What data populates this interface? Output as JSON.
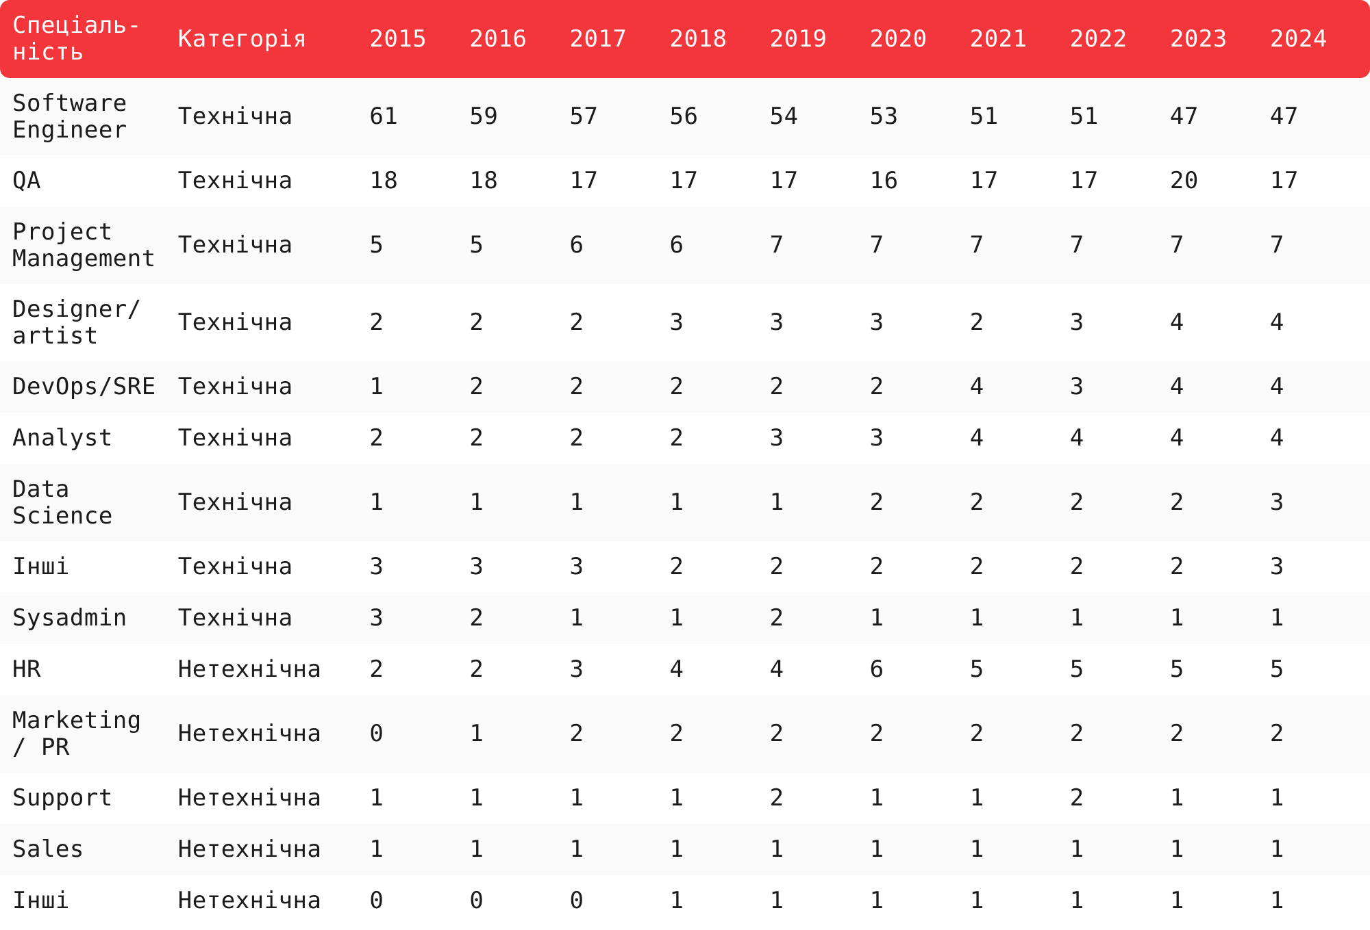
{
  "table": {
    "header": {
      "specialty": "Спеціаль-\nність",
      "category": "Категорія",
      "years": [
        "2015",
        "2016",
        "2017",
        "2018",
        "2019",
        "2020",
        "2021",
        "2022",
        "2023",
        "2024"
      ]
    },
    "rows": [
      {
        "specialty": "Software\nEngineer",
        "category": "Технічна",
        "values": [
          "61",
          "59",
          "57",
          "56",
          "54",
          "53",
          "51",
          "51",
          "47",
          "47"
        ]
      },
      {
        "specialty": "QA",
        "category": "Технічна",
        "values": [
          "18",
          "18",
          "17",
          "17",
          "17",
          "16",
          "17",
          "17",
          "20",
          "17"
        ]
      },
      {
        "specialty": "Project\nManagement",
        "category": "Технічна",
        "values": [
          "5",
          "5",
          "6",
          "6",
          "7",
          "7",
          "7",
          "7",
          "7",
          "7"
        ]
      },
      {
        "specialty": "Designer/\nartist",
        "category": "Технічна",
        "values": [
          "2",
          "2",
          "2",
          "3",
          "3",
          "3",
          "2",
          "3",
          "4",
          "4"
        ]
      },
      {
        "specialty": "DevOps/SRE",
        "category": "Технічна",
        "values": [
          "1",
          "2",
          "2",
          "2",
          "2",
          "2",
          "4",
          "3",
          "4",
          "4"
        ]
      },
      {
        "specialty": "Analyst",
        "category": "Технічна",
        "values": [
          "2",
          "2",
          "2",
          "2",
          "3",
          "3",
          "4",
          "4",
          "4",
          "4"
        ]
      },
      {
        "specialty": "Data\nScience",
        "category": "Технічна",
        "values": [
          "1",
          "1",
          "1",
          "1",
          "1",
          "2",
          "2",
          "2",
          "2",
          "3"
        ]
      },
      {
        "specialty": "Інші",
        "category": "Технічна",
        "values": [
          "3",
          "3",
          "3",
          "2",
          "2",
          "2",
          "2",
          "2",
          "2",
          "3"
        ]
      },
      {
        "specialty": "Sysadmin",
        "category": "Технічна",
        "values": [
          "3",
          "2",
          "1",
          "1",
          "2",
          "1",
          "1",
          "1",
          "1",
          "1"
        ]
      },
      {
        "specialty": "HR",
        "category": "Нетехнічна",
        "values": [
          "2",
          "2",
          "3",
          "4",
          "4",
          "6",
          "5",
          "5",
          "5",
          "5"
        ]
      },
      {
        "specialty": "Marketing\n/ PR",
        "category": "Нетехнічна",
        "values": [
          "0",
          "1",
          "2",
          "2",
          "2",
          "2",
          "2",
          "2",
          "2",
          "2"
        ]
      },
      {
        "specialty": "Support",
        "category": "Нетехнічна",
        "values": [
          "1",
          "1",
          "1",
          "1",
          "2",
          "1",
          "1",
          "2",
          "1",
          "1"
        ]
      },
      {
        "specialty": "Sales",
        "category": "Нетехнічна",
        "values": [
          "1",
          "1",
          "1",
          "1",
          "1",
          "1",
          "1",
          "1",
          "1",
          "1"
        ]
      },
      {
        "specialty": "Інші",
        "category": "Нетехнічна",
        "values": [
          "0",
          "0",
          "0",
          "1",
          "1",
          "1",
          "1",
          "1",
          "1",
          "1"
        ]
      }
    ]
  },
  "colors": {
    "header_bg": "#f2363c",
    "header_text": "#ffffff",
    "row_alt_bg": "#fafafa",
    "text": "#1b1b1b"
  }
}
